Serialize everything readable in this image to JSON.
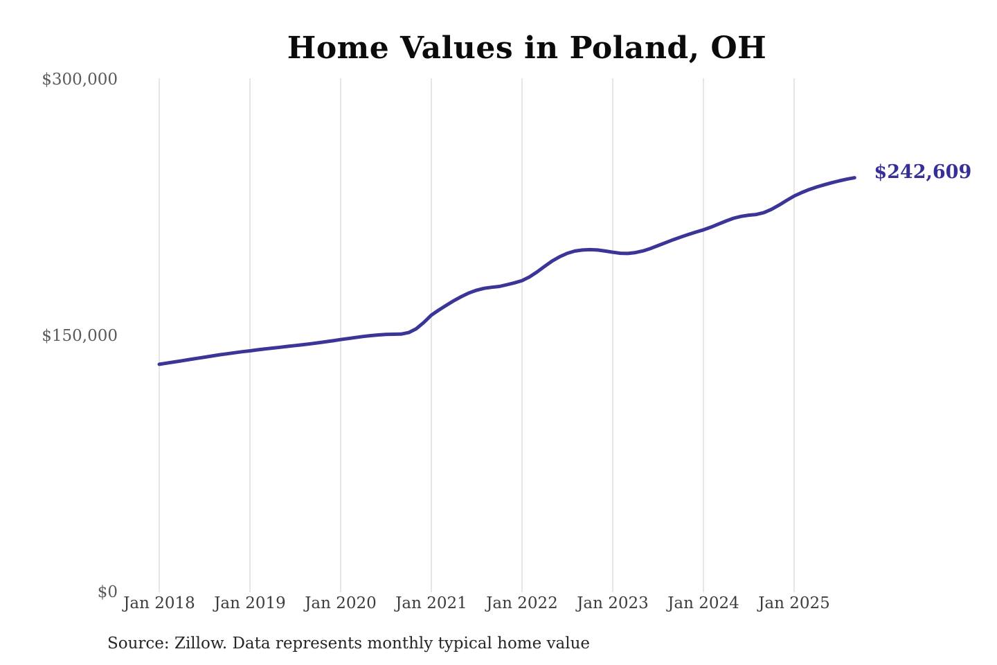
{
  "header": {
    "title": "Home Values in Poland, OH"
  },
  "footer": {
    "source_note": "Source: Zillow. Data represents monthly typical home value"
  },
  "colors": {
    "background": "#ffffff",
    "line": "#3a3597",
    "end_label": "#352f96",
    "gridline": "#cccccc",
    "y_tick_label": "#5a5a5a",
    "x_tick_label": "#3d3d3d",
    "title": "#0b0b0b",
    "source": "#262626"
  },
  "chart_data": {
    "type": "line",
    "title": "Home Values in Poland, OH",
    "unit": "USD",
    "ylim": [
      0,
      300000
    ],
    "grid": "vertical-only",
    "legend": "none",
    "end_label": "$242,609",
    "latest_value": 242609,
    "y_ticks": [
      {
        "value": 0,
        "label": "$0"
      },
      {
        "value": 150000,
        "label": "$150,000"
      },
      {
        "value": 300000,
        "label": "$300,000"
      }
    ],
    "x_ticks": [
      {
        "month_index": 0,
        "label": "Jan 2018"
      },
      {
        "month_index": 12,
        "label": "Jan 2019"
      },
      {
        "month_index": 24,
        "label": "Jan 2020"
      },
      {
        "month_index": 36,
        "label": "Jan 2021"
      },
      {
        "month_index": 48,
        "label": "Jan 2022"
      },
      {
        "month_index": 60,
        "label": "Jan 2023"
      },
      {
        "month_index": 72,
        "label": "Jan 2024"
      },
      {
        "month_index": 84,
        "label": "Jan 2025"
      }
    ],
    "series": [
      {
        "name": "Monthly typical home value",
        "color": "#3a3597",
        "cadence": "monthly",
        "start_month": "2018-01",
        "end_month": "2025-09",
        "values": [
          133400,
          134100,
          134800,
          135500,
          136200,
          136900,
          137600,
          138300,
          139000,
          139600,
          140200,
          140800,
          141300,
          141900,
          142400,
          142900,
          143400,
          143900,
          144400,
          144900,
          145400,
          146000,
          146600,
          147200,
          147900,
          148500,
          149100,
          149700,
          150200,
          150600,
          150900,
          151000,
          151100,
          152000,
          154200,
          157900,
          162200,
          165200,
          168000,
          170700,
          173100,
          175200,
          176800,
          177900,
          178500,
          179000,
          180000,
          181100,
          182400,
          184600,
          187500,
          190800,
          193900,
          196400,
          198400,
          199700,
          200300,
          200500,
          200300,
          199700,
          199000,
          198400,
          198300,
          198800,
          199800,
          201200,
          202900,
          204600,
          206300,
          207900,
          209400,
          210800,
          212100,
          213700,
          215500,
          217300,
          218900,
          220000,
          220700,
          221100,
          222200,
          224100,
          226600,
          229300,
          231900,
          233900,
          235700,
          237200,
          238500,
          239700,
          240800,
          241800,
          242609
        ]
      }
    ]
  }
}
